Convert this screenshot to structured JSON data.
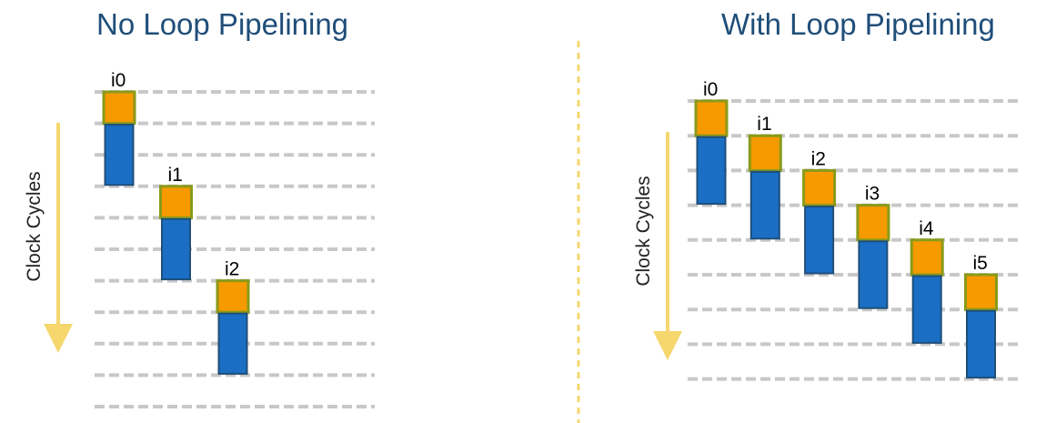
{
  "left_panel": {
    "title": "No Loop Pipelining",
    "axis_label": "Clock Cycles",
    "iterations": [
      {
        "label": "i0",
        "start_cycle": 0
      },
      {
        "label": "i1",
        "start_cycle": 3
      },
      {
        "label": "i2",
        "start_cycle": 6
      }
    ]
  },
  "right_panel": {
    "title": "With Loop Pipelining",
    "axis_label": "Clock Cycles",
    "iterations": [
      {
        "label": "i0",
        "start_cycle": 0
      },
      {
        "label": "i1",
        "start_cycle": 1
      },
      {
        "label": "i2",
        "start_cycle": 2
      },
      {
        "label": "i3",
        "start_cycle": 3
      },
      {
        "label": "i4",
        "start_cycle": 4
      },
      {
        "label": "i5",
        "start_cycle": 5
      }
    ]
  },
  "colors": {
    "title": "#1f4e79",
    "stage_first_fill": "#f59a00",
    "stage_first_border": "#8a9a1a",
    "stage_rest_fill": "#1a6fc4",
    "stage_rest_border": "#1f4e79",
    "grid_dash": "#c8c8c8",
    "arrow": "#f5d76e",
    "divider": "#f5d76e"
  }
}
